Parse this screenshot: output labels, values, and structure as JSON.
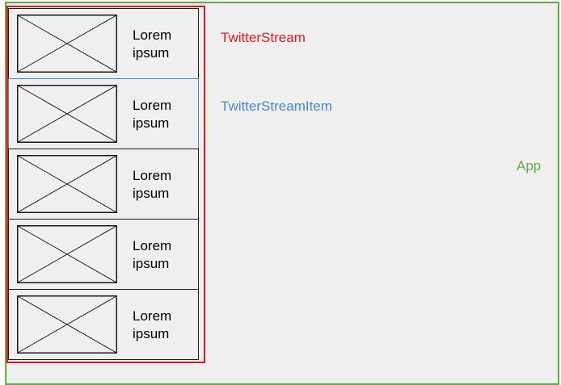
{
  "labels": {
    "app": "App",
    "twitter_stream": "TwitterStream",
    "twitter_stream_item": "TwitterStreamItem"
  },
  "colors": {
    "app": "#6aa84f",
    "twitter_stream": "#e0191f",
    "twitter_stream_item": "#4a86c8"
  },
  "items": [
    {
      "line1": "Lorem",
      "line2": "ipsum",
      "image": "placeholder-image-icon"
    },
    {
      "line1": "Lorem",
      "line2": "ipsum",
      "image": "placeholder-image-icon"
    },
    {
      "line1": "Lorem",
      "line2": "ipsum",
      "image": "placeholder-image-icon"
    },
    {
      "line1": "Lorem",
      "line2": "ipsum",
      "image": "placeholder-image-icon"
    },
    {
      "line1": "Lorem",
      "line2": "ipsum",
      "image": "placeholder-image-icon"
    }
  ]
}
